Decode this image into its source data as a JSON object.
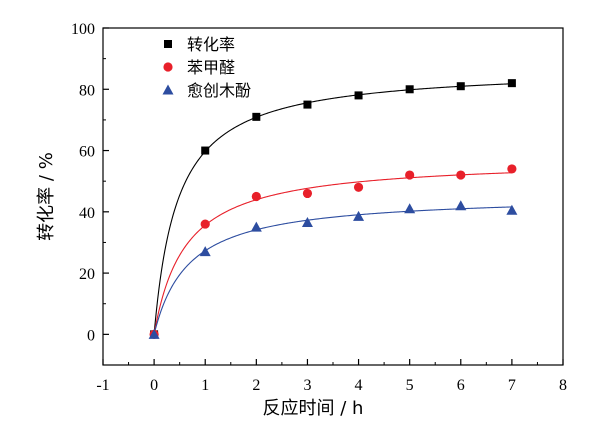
{
  "chart_data": {
    "type": "scatter",
    "xlabel": "反应时间 / h",
    "ylabel": "转化率 / %",
    "xlim": [
      -1,
      8
    ],
    "ylim": [
      -10,
      100
    ],
    "xticks": [
      -1,
      0,
      1,
      2,
      3,
      4,
      5,
      6,
      7,
      8
    ],
    "yticks": [
      0,
      20,
      40,
      60,
      80,
      100
    ],
    "legend_position": "top-left",
    "x": [
      0,
      1,
      2,
      3,
      4,
      5,
      6,
      7
    ],
    "series": [
      {
        "name": "转化率",
        "marker": "square",
        "marker_color": "#000000",
        "curve_color": "#000000",
        "values": [
          0,
          60,
          71,
          75,
          78,
          80,
          81,
          82
        ]
      },
      {
        "name": "苯甲醛",
        "marker": "circle",
        "marker_color": "#e8202a",
        "curve_color": "#e8202a",
        "values": [
          0,
          36,
          45,
          46,
          48,
          52,
          52,
          54
        ]
      },
      {
        "name": "愈创木酚",
        "marker": "triangle",
        "marker_color": "#2d4da0",
        "curve_color": "#2d4da0",
        "values": [
          0,
          27,
          35,
          36.5,
          38.5,
          41,
          42,
          40.5
        ]
      }
    ]
  }
}
